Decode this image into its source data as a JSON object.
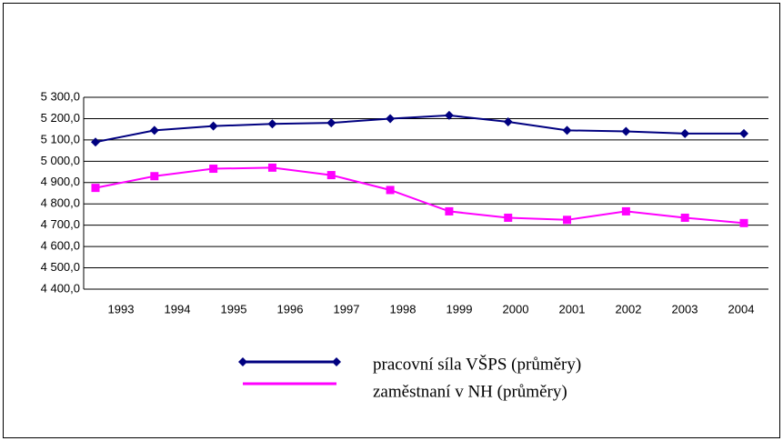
{
  "chart_data": {
    "type": "line",
    "categories": [
      "1993",
      "1994",
      "1995",
      "1996",
      "1997",
      "1998",
      "1999",
      "2000",
      "2001",
      "2002",
      "2003",
      "2004"
    ],
    "series": [
      {
        "name": "pracovní síla VŠPS (průměry)",
        "color": "#000080",
        "marker": "diamond",
        "values": [
          5090,
          5145,
          5165,
          5175,
          5180,
          5200,
          5215,
          5185,
          5145,
          5140,
          5130,
          5130
        ]
      },
      {
        "name": "zaměstnaní v NH (průměry)",
        "color": "#ff00ff",
        "marker": "square",
        "values": [
          4875,
          4930,
          4965,
          4970,
          4935,
          4865,
          4765,
          4735,
          4725,
          4765,
          4735,
          4710
        ]
      }
    ],
    "ylim": [
      4400,
      5300
    ],
    "yticks": [
      {
        "value": 4400,
        "label": "4 400,0"
      },
      {
        "value": 4500,
        "label": "4 500,0"
      },
      {
        "value": 4600,
        "label": "4 600,0"
      },
      {
        "value": 4700,
        "label": "4 700,0"
      },
      {
        "value": 4800,
        "label": "4 800,0"
      },
      {
        "value": 4900,
        "label": "4 900,0"
      },
      {
        "value": 5000,
        "label": "5 000,0"
      },
      {
        "value": 5100,
        "label": "5 100,0"
      },
      {
        "value": 5200,
        "label": "5 200,0"
      },
      {
        "value": 5300,
        "label": "5 300,0"
      }
    ],
    "grid": true
  }
}
